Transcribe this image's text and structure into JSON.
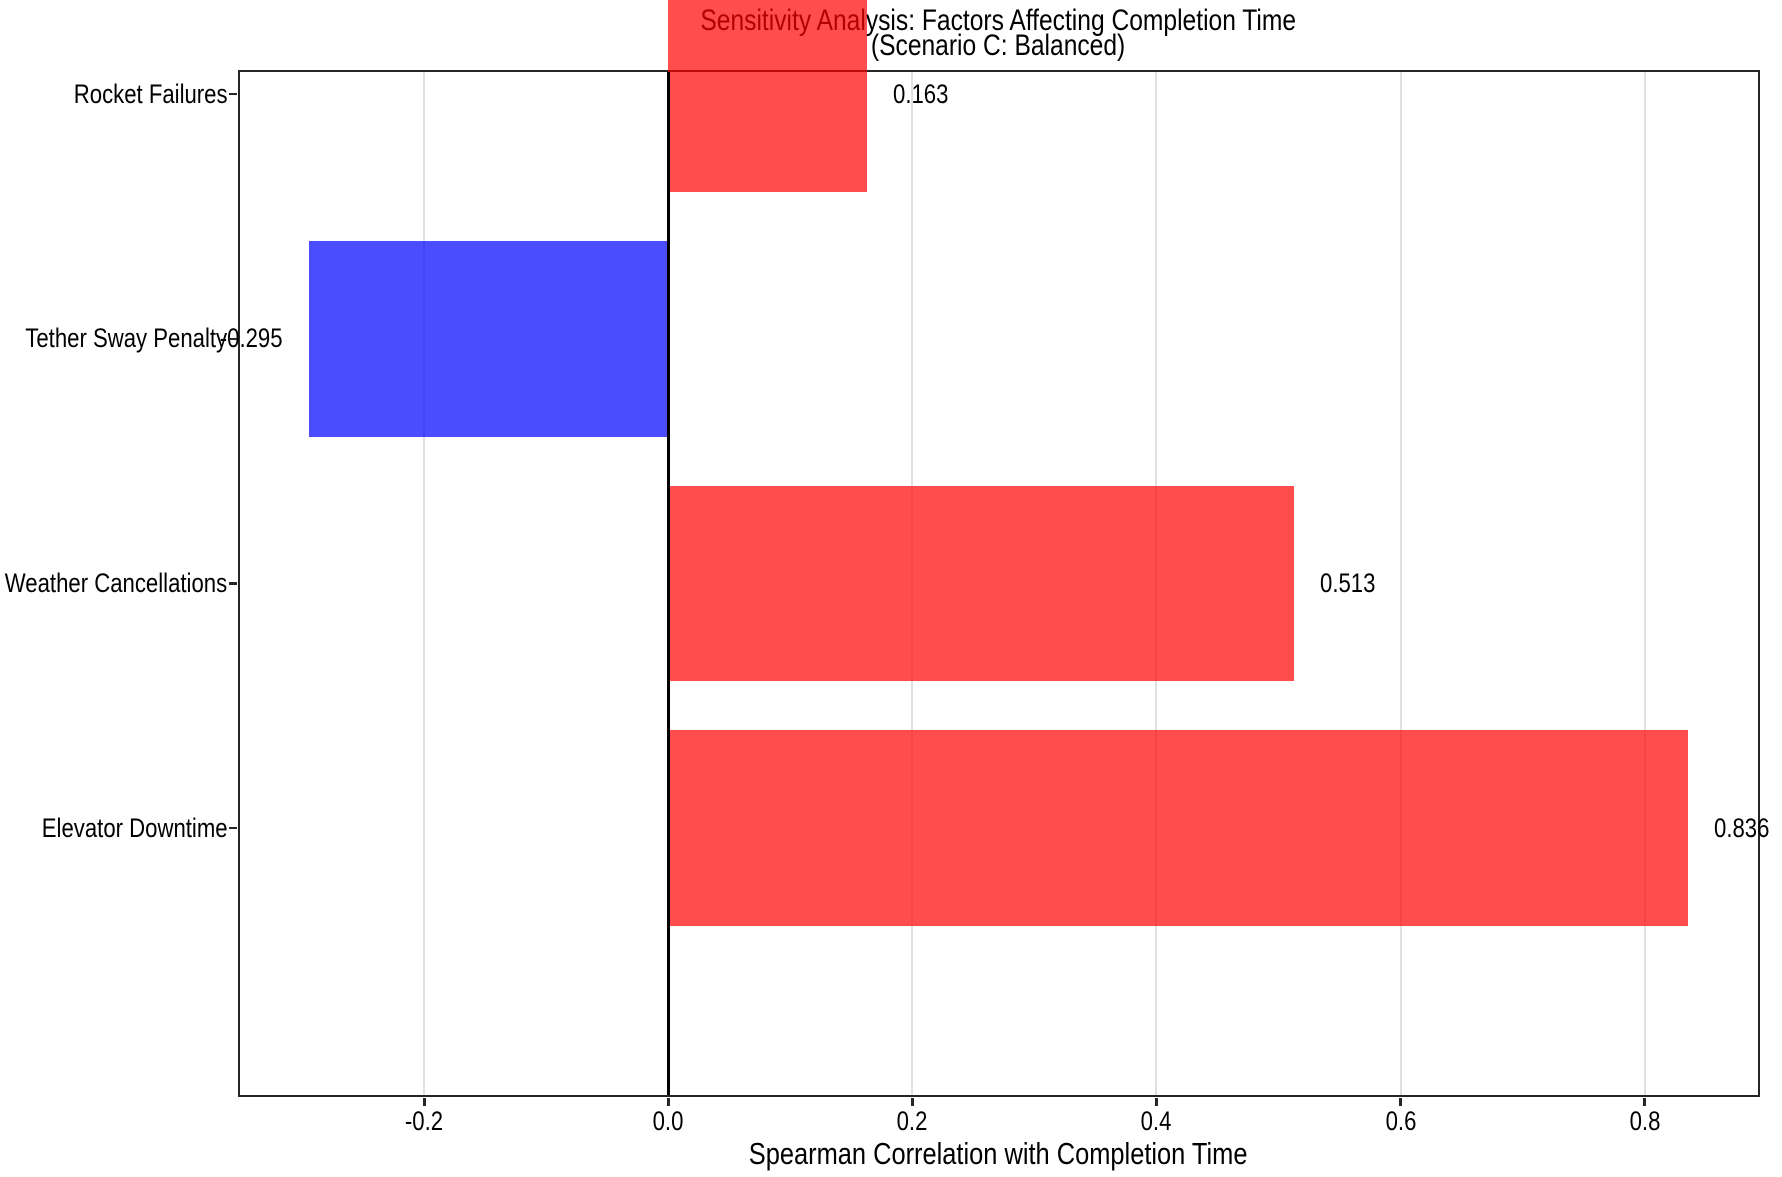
{
  "title": {
    "line1": "Sensitivity Analysis: Factors Affecting Completion Time",
    "line2": "(Scenario C: Balanced)"
  },
  "chart_data": {
    "type": "bar",
    "orientation": "horizontal",
    "title": "Sensitivity Analysis: Factors Affecting Completion Time (Scenario C: Balanced)",
    "xlabel": "Spearman Correlation with Completion Time",
    "ylabel": "",
    "categories_top_to_bottom": [
      "Rocket Failures",
      "Tether Sway Penalty",
      "Weather Cancellations",
      "Elevator Downtime"
    ],
    "values": [
      0.163,
      -0.295,
      0.513,
      0.836
    ],
    "value_labels": [
      "0.163",
      "-0.295",
      "0.513",
      "0.836"
    ],
    "bar_colors": [
      "rgba(255,0,0,0.7)",
      "rgba(0,0,255,0.7)",
      "rgba(255,0,0,0.7)",
      "rgba(255,0,0,0.7)"
    ],
    "positive_color_composited": "#ff4c4c",
    "negative_color_composited": "#4c4cff",
    "x_ticks": [
      -0.2,
      0.0,
      0.2,
      0.4,
      0.6,
      0.8
    ],
    "x_tick_labels": [
      "-0.2",
      "0.0",
      "0.2",
      "0.4",
      "0.6",
      "0.8"
    ],
    "xlim": [
      -0.3516,
      0.8926
    ],
    "ylim_band_units": [
      -0.59,
      3.59
    ],
    "bar_height_fraction": 0.8,
    "grid": "vertical-only",
    "grid_color": "#e0e0e0",
    "zero_line": true,
    "zero_line_color": "#000000",
    "spine_color": "#262626",
    "legend": "none"
  }
}
